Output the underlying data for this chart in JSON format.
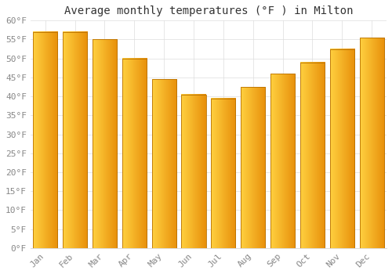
{
  "title": "Average monthly temperatures (°F ) in Milton",
  "months": [
    "Jan",
    "Feb",
    "Mar",
    "Apr",
    "May",
    "Jun",
    "Jul",
    "Aug",
    "Sep",
    "Oct",
    "Nov",
    "Dec"
  ],
  "values": [
    57,
    57,
    55,
    50,
    44.5,
    40.5,
    39.5,
    42.5,
    46,
    49,
    52.5,
    55.5
  ],
  "ylim": [
    0,
    60
  ],
  "yticks": [
    0,
    5,
    10,
    15,
    20,
    25,
    30,
    35,
    40,
    45,
    50,
    55,
    60
  ],
  "bar_color_left": "#FFD040",
  "bar_color_right": "#E8900A",
  "bar_edge_color": "#B87000",
  "background_color": "#FFFFFF",
  "grid_color": "#DDDDDD",
  "title_fontsize": 10,
  "tick_fontsize": 8
}
